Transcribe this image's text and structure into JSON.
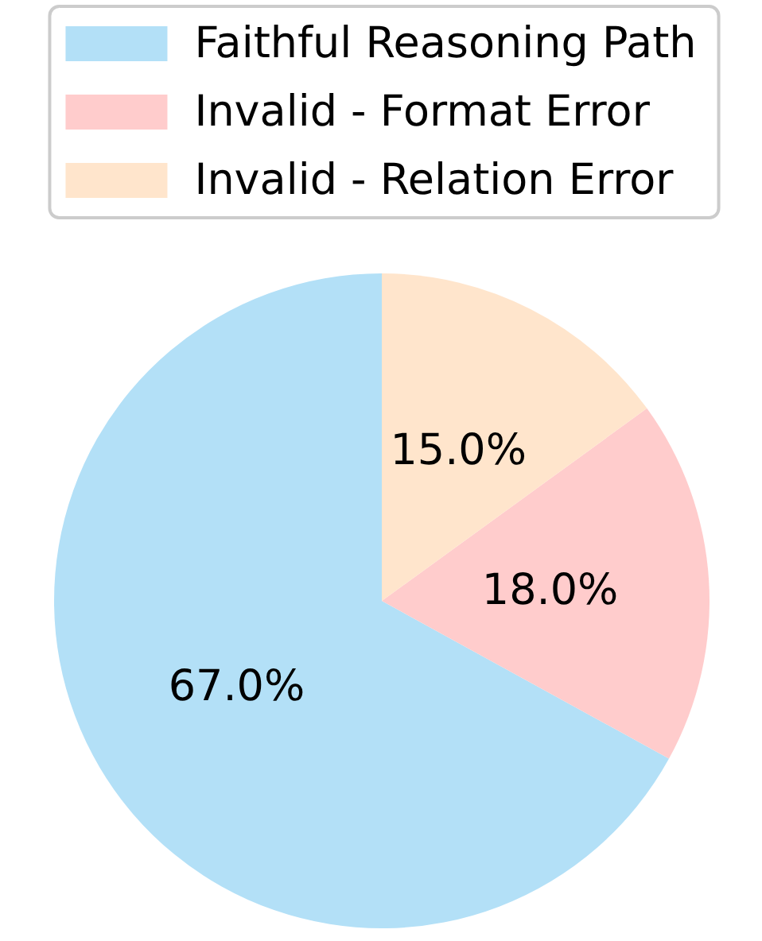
{
  "chart_data": {
    "type": "pie",
    "categories": [
      "Faithful Reasoning Path",
      "Invalid - Format Error",
      "Invalid - Relation Error"
    ],
    "values": [
      67,
      18,
      15
    ],
    "colors": [
      "#b3e0f7",
      "#ffcccc",
      "#ffe5cc"
    ],
    "value_labels": [
      "67.0%",
      "18.0%",
      "15.0%"
    ],
    "legend": "top"
  }
}
